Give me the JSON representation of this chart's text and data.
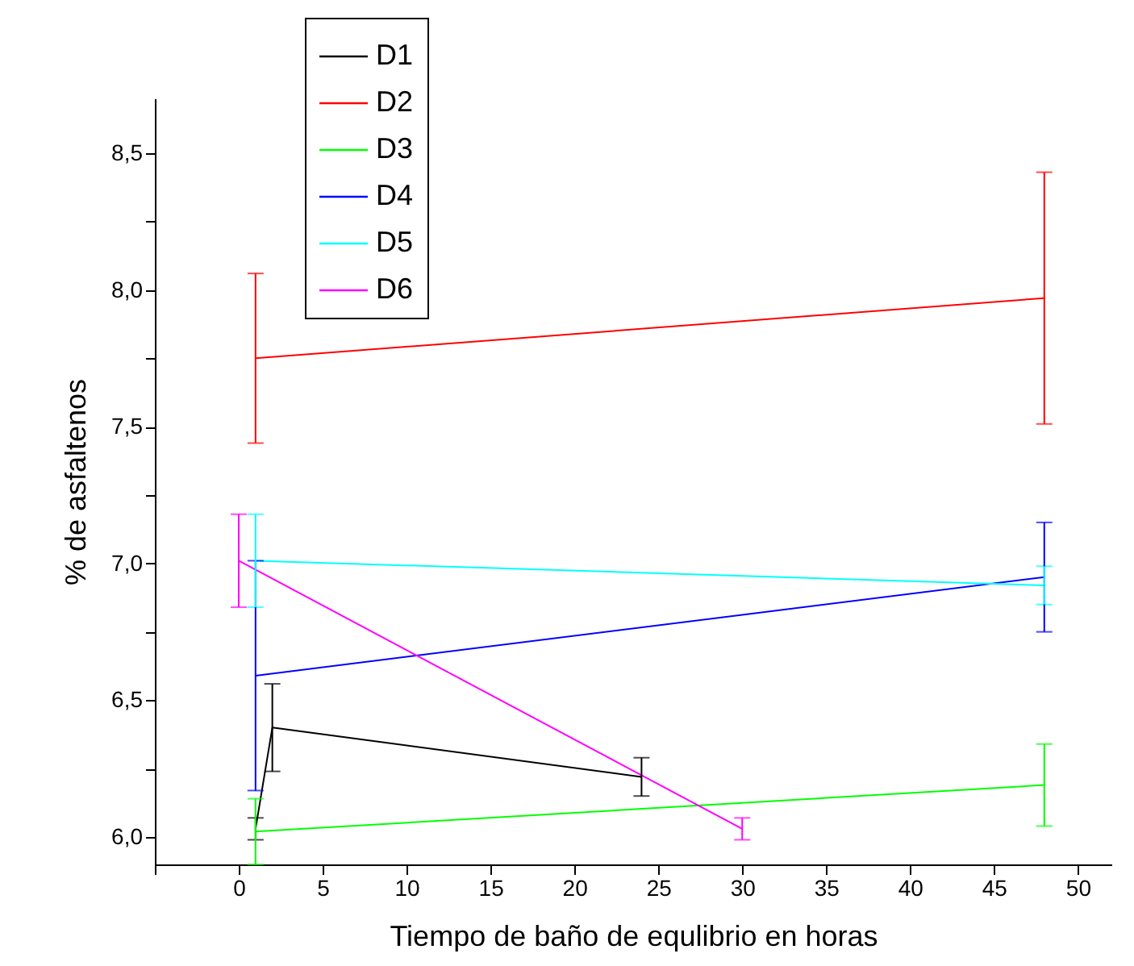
{
  "chart_data": {
    "type": "line",
    "xlabel": "Tiempo de baño de equlibrio en horas",
    "ylabel": "% de asfaltenos",
    "xlim": [
      -5,
      52
    ],
    "xticks": [
      {
        "value": -5,
        "label": null
      },
      0,
      5,
      10,
      15,
      20,
      25,
      30,
      35,
      40,
      45,
      50
    ],
    "ylim": [
      5.9,
      8.7
    ],
    "yticks": [
      {
        "value": 6,
        "label": "6,0"
      },
      {
        "value": 6.25,
        "label": null
      },
      {
        "value": 6.5,
        "label": "6,5"
      },
      {
        "value": 6.75,
        "label": null
      },
      {
        "value": 7,
        "label": "7,0"
      },
      {
        "value": 7.25,
        "label": null
      },
      {
        "value": 7.5,
        "label": "7,5"
      },
      {
        "value": 7.75,
        "label": null
      },
      {
        "value": 8,
        "label": "8,0"
      },
      {
        "value": 8.25,
        "label": null
      },
      {
        "value": 8.5,
        "label": "8,5"
      }
    ],
    "grid": false,
    "legend": "top left",
    "marker": "none",
    "line_style": "solid",
    "series": [
      {
        "name": "D1",
        "color": "#000000",
        "x": [
          1,
          2,
          24
        ],
        "values": [
          6.03,
          6.4,
          6.22
        ],
        "errors": [
          0.04,
          0.16,
          0.07
        ]
      },
      {
        "name": "D2",
        "color": "#ff0000",
        "x": [
          1,
          48
        ],
        "values": [
          7.75,
          7.97
        ],
        "errors": [
          0.31,
          0.46
        ]
      },
      {
        "name": "D3",
        "color": "#00ff00",
        "x": [
          1,
          48
        ],
        "values": [
          6.02,
          6.19
        ],
        "errors": [
          0.12,
          0.15
        ]
      },
      {
        "name": "D4",
        "color": "#0000ff",
        "x": [
          1,
          48
        ],
        "values": [
          6.59,
          6.95
        ],
        "errors": [
          0.42,
          0.2
        ]
      },
      {
        "name": "D5",
        "color": "#00ffff",
        "x": [
          1,
          48
        ],
        "values": [
          7.01,
          6.92
        ],
        "errors": [
          0.17,
          0.07
        ]
      },
      {
        "name": "D6",
        "color": "#ff00ff",
        "x": [
          0,
          30
        ],
        "values": [
          7.01,
          6.03
        ],
        "errors": [
          0.17,
          0.04
        ]
      }
    ]
  }
}
